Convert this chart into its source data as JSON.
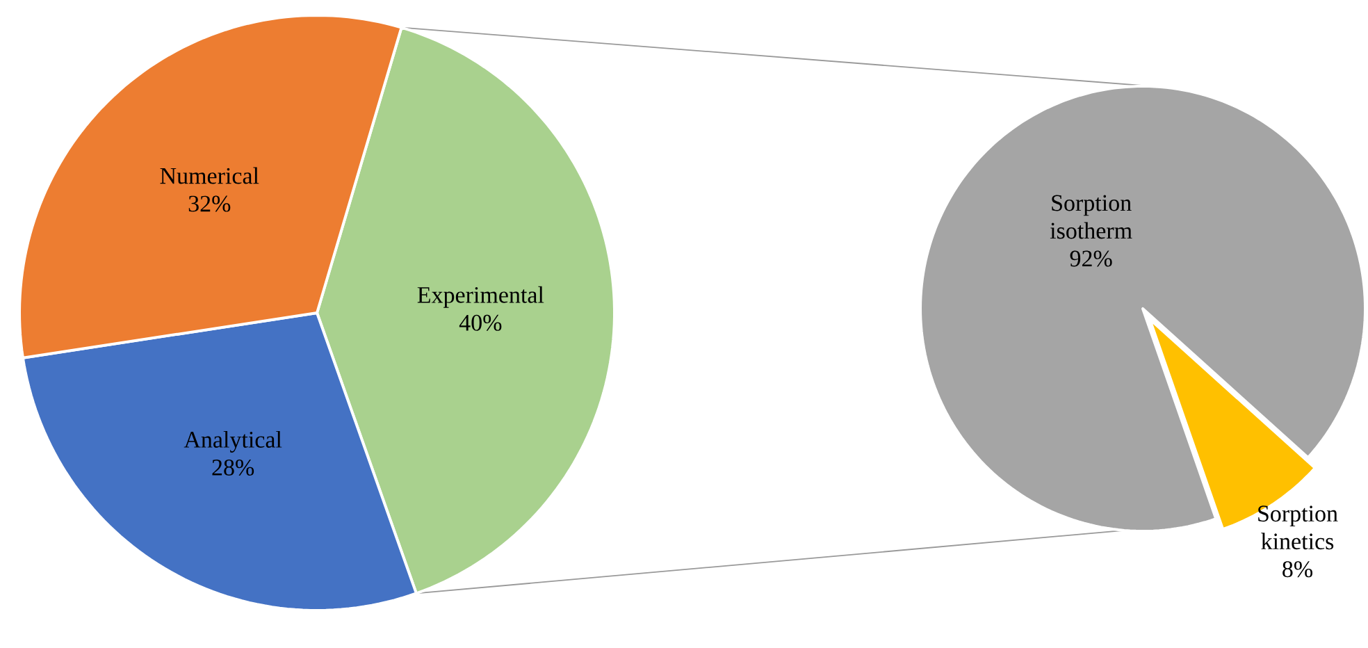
{
  "chart_data": [
    {
      "type": "pie",
      "categories": [
        "Experimental",
        "Analytical",
        "Numerical"
      ],
      "values": [
        40,
        28,
        32
      ],
      "colors": [
        "#a9d18e",
        "#4472c4",
        "#ed7d31"
      ],
      "value_labels": [
        "40%",
        "28%",
        "32%"
      ]
    },
    {
      "type": "pie",
      "categories": [
        "Sorption isotherm",
        "Sorption kinetics"
      ],
      "values": [
        92,
        8
      ],
      "colors": [
        "#a5a5a5",
        "#ffc000"
      ],
      "value_labels": [
        "92%",
        "8%"
      ]
    }
  ]
}
